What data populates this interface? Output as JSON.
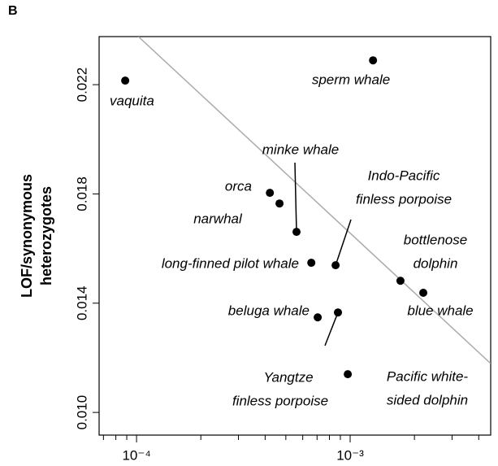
{
  "chart_data": {
    "type": "scatter",
    "panel_label": "B",
    "y_label": [
      "LOF/synonymous",
      "heterozygotes"
    ],
    "x_log": true,
    "xlim": [
      6.68e-05,
      0.00455
    ],
    "ylim": [
      0.00917,
      0.02376
    ],
    "xticks": [
      {
        "value": 0.0001,
        "label": "10⁻⁴"
      },
      {
        "value": 0.001,
        "label": "10⁻³"
      }
    ],
    "minor_xticks": [
      7e-05,
      8e-05,
      9e-05,
      0.0002,
      0.0003,
      0.0004,
      0.0005,
      0.0006,
      0.0007,
      0.0008,
      0.0009,
      0.002,
      0.003,
      0.004
    ],
    "yticks": [
      {
        "value": 0.01,
        "label": "0.010"
      },
      {
        "value": 0.014,
        "label": "0.014"
      },
      {
        "value": 0.018,
        "label": "0.018"
      },
      {
        "value": 0.022,
        "label": "0.022"
      }
    ],
    "color": "#000000",
    "trend_color": "#aaaaaa",
    "trend_line": {
      "x": [
        0.000102,
        0.00455
      ],
      "y": [
        0.02376,
        0.01179
      ]
    },
    "points": [
      {
        "label": [
          "vaquita"
        ],
        "x": 8.85e-05,
        "y": 0.02215
      },
      {
        "label": [
          "sperm whale"
        ],
        "x": 0.00128,
        "y": 0.02289
      },
      {
        "label": [
          "orca"
        ],
        "x": 0.000421,
        "y": 0.01804
      },
      {
        "label": [
          "narwhal"
        ],
        "x": 0.000467,
        "y": 0.01765
      },
      {
        "label": [
          "minke whale"
        ],
        "x": 0.000561,
        "y": 0.01661
      },
      {
        "label": [
          "long-finned pilot whale"
        ],
        "x": 0.000658,
        "y": 0.01548
      },
      {
        "label": [
          "Indo-Pacific",
          "finless porpoise"
        ],
        "x": 0.000855,
        "y": 0.01539
      },
      {
        "label": [
          "bottlenose",
          "dolphin"
        ],
        "x": 0.00172,
        "y": 0.01482
      },
      {
        "label": [
          "blue whale"
        ],
        "x": 0.0022,
        "y": 0.01438
      },
      {
        "label": [
          "beluga whale"
        ],
        "x": 0.000705,
        "y": 0.01348
      },
      {
        "label": [
          "Yangtze",
          "finless porpoise"
        ],
        "x": 0.000877,
        "y": 0.01366
      },
      {
        "label": [
          "Pacific white-",
          "sided dolphin"
        ],
        "x": 0.000975,
        "y": 0.0114
      }
    ]
  }
}
